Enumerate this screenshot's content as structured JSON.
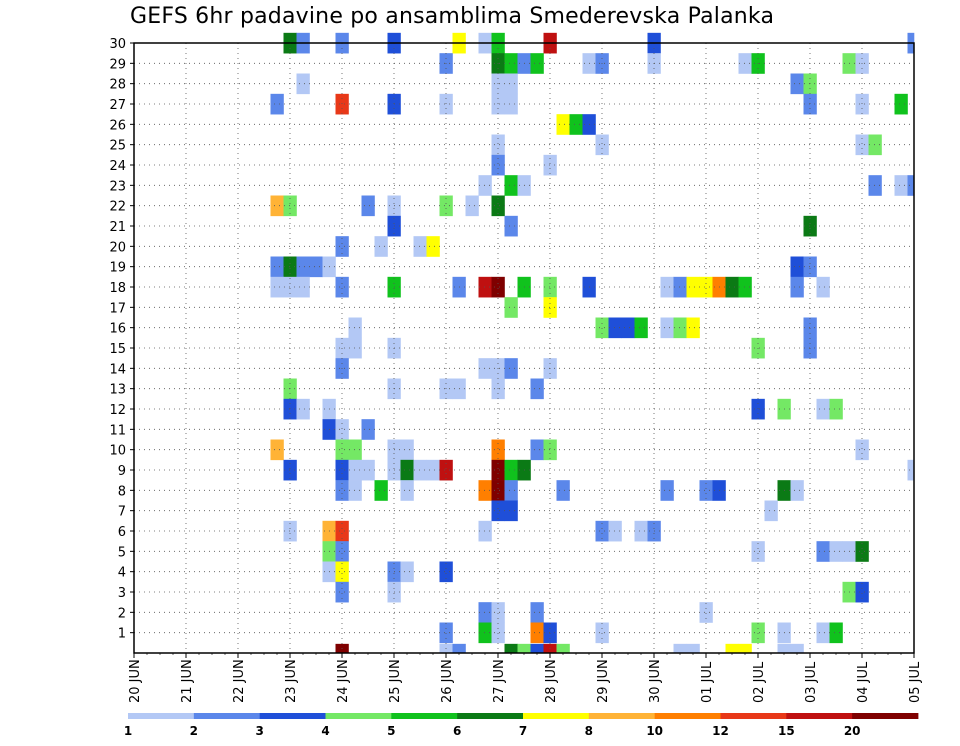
{
  "chart_data": {
    "type": "heatmap",
    "title": "GEFS 6hr padavine po ansamblima Smederevska Palanka",
    "xlabel": "",
    "ylabel": "",
    "x_tick_labels": [
      "20 JUN",
      "21 JUN",
      "22 JUN",
      "23 JUN",
      "24 JUN",
      "25 JUN",
      "26 JUN",
      "27 JUN",
      "28 JUN",
      "29 JUN",
      "30 JUN",
      "01 JUL",
      "02 JUL",
      "03 JUL",
      "04 JUL",
      "05 JUL"
    ],
    "y_tick_labels": [
      "1",
      "2",
      "3",
      "4",
      "5",
      "6",
      "7",
      "8",
      "9",
      "10",
      "11",
      "12",
      "13",
      "14",
      "15",
      "16",
      "17",
      "18",
      "19",
      "20",
      "21",
      "22",
      "23",
      "24",
      "25",
      "26",
      "27",
      "28",
      "29",
      "30"
    ],
    "x_range": [
      "20 JUN 00",
      "05 JUL 00"
    ],
    "time_step_hours": 6,
    "y_range": [
      0,
      30
    ],
    "grid": true,
    "colorbar": {
      "labels": [
        "1",
        "2",
        "3",
        "4",
        "5",
        "6",
        "7",
        "8",
        "10",
        "12",
        "15",
        "20"
      ],
      "colors": [
        "#b3c8f5",
        "#5b87ea",
        "#1f4fd8",
        "#74e865",
        "#10c21d",
        "#0b7a15",
        "#ffff00",
        "#ffb336",
        "#ff7f00",
        "#e83818",
        "#bf1010",
        "#7f0000"
      ]
    },
    "cells": [
      {
        "member": 30,
        "t": "23 JUN 00",
        "level": 6
      },
      {
        "member": 30,
        "t": "23 JUN 06",
        "level": 2
      },
      {
        "member": 30,
        "t": "24 JUN 00",
        "level": 2
      },
      {
        "member": 30,
        "t": "25 JUN 00",
        "level": 3
      },
      {
        "member": 30,
        "t": "26 JUN 06",
        "level": 7
      },
      {
        "member": 30,
        "t": "26 JUN 18",
        "level": 1
      },
      {
        "member": 30,
        "t": "27 JUN 00",
        "level": 5
      },
      {
        "member": 30,
        "t": "28 JUN 00",
        "level": 11
      },
      {
        "member": 30,
        "t": "30 JUN 00",
        "level": 3
      },
      {
        "member": 30,
        "t": "05 JUL 00",
        "level": 2
      },
      {
        "member": 29,
        "t": "26 JUN 00",
        "level": 2
      },
      {
        "member": 29,
        "t": "27 JUN 00",
        "level": 6
      },
      {
        "member": 29,
        "t": "27 JUN 06",
        "level": 5
      },
      {
        "member": 29,
        "t": "27 JUN 12",
        "level": 2
      },
      {
        "member": 29,
        "t": "27 JUN 18",
        "level": 5
      },
      {
        "member": 29,
        "t": "28 JUN 18",
        "level": 1
      },
      {
        "member": 29,
        "t": "29 JUN 00",
        "level": 2
      },
      {
        "member": 29,
        "t": "30 JUN 00",
        "level": 1
      },
      {
        "member": 29,
        "t": "01 JUL 18",
        "level": 1
      },
      {
        "member": 29,
        "t": "02 JUL 00",
        "level": 5
      },
      {
        "member": 29,
        "t": "03 JUL 18",
        "level": 4
      },
      {
        "member": 29,
        "t": "04 JUL 00",
        "level": 1
      },
      {
        "member": 28,
        "t": "23 JUN 06",
        "level": 1
      },
      {
        "member": 28,
        "t": "27 JUN 00",
        "level": 1
      },
      {
        "member": 28,
        "t": "27 JUN 06",
        "level": 1
      },
      {
        "member": 28,
        "t": "02 JUL 18",
        "level": 2
      },
      {
        "member": 28,
        "t": "03 JUL 00",
        "level": 4
      },
      {
        "member": 27,
        "t": "22 JUN 18",
        "level": 2
      },
      {
        "member": 27,
        "t": "24 JUN 00",
        "level": 10
      },
      {
        "member": 27,
        "t": "25 JUN 00",
        "level": 3
      },
      {
        "member": 27,
        "t": "26 JUN 00",
        "level": 1
      },
      {
        "member": 27,
        "t": "27 JUN 00",
        "level": 1
      },
      {
        "member": 27,
        "t": "27 JUN 06",
        "level": 1
      },
      {
        "member": 27,
        "t": "03 JUL 00",
        "level": 2
      },
      {
        "member": 27,
        "t": "04 JUL 00",
        "level": 1
      },
      {
        "member": 27,
        "t": "04 JUL 18",
        "level": 5
      },
      {
        "member": 26,
        "t": "28 JUN 06",
        "level": 7
      },
      {
        "member": 26,
        "t": "28 JUN 12",
        "level": 5
      },
      {
        "member": 26,
        "t": "28 JUN 18",
        "level": 3
      },
      {
        "member": 25,
        "t": "27 JUN 00",
        "level": 1
      },
      {
        "member": 25,
        "t": "29 JUN 00",
        "level": 1
      },
      {
        "member": 25,
        "t": "04 JUL 00",
        "level": 1
      },
      {
        "member": 25,
        "t": "04 JUL 06",
        "level": 4
      },
      {
        "member": 24,
        "t": "27 JUN 00",
        "level": 2
      },
      {
        "member": 24,
        "t": "28 JUN 00",
        "level": 1
      },
      {
        "member": 23,
        "t": "26 JUN 18",
        "level": 1
      },
      {
        "member": 23,
        "t": "27 JUN 06",
        "level": 5
      },
      {
        "member": 23,
        "t": "27 JUN 12",
        "level": 1
      },
      {
        "member": 23,
        "t": "04 JUL 06",
        "level": 2
      },
      {
        "member": 23,
        "t": "04 JUL 18",
        "level": 1
      },
      {
        "member": 23,
        "t": "05 JUL 00",
        "level": 2
      },
      {
        "member": 22,
        "t": "22 JUN 18",
        "level": 8
      },
      {
        "member": 22,
        "t": "23 JUN 00",
        "level": 4
      },
      {
        "member": 22,
        "t": "24 JUN 12",
        "level": 2
      },
      {
        "member": 22,
        "t": "25 JUN 00",
        "level": 1
      },
      {
        "member": 22,
        "t": "26 JUN 00",
        "level": 4
      },
      {
        "member": 22,
        "t": "26 JUN 12",
        "level": 1
      },
      {
        "member": 22,
        "t": "27 JUN 00",
        "level": 6
      },
      {
        "member": 21,
        "t": "25 JUN 00",
        "level": 3
      },
      {
        "member": 21,
        "t": "27 JUN 06",
        "level": 2
      },
      {
        "member": 21,
        "t": "03 JUL 00",
        "level": 6
      },
      {
        "member": 20,
        "t": "24 JUN 00",
        "level": 2
      },
      {
        "member": 20,
        "t": "24 JUN 18",
        "level": 1
      },
      {
        "member": 20,
        "t": "25 JUN 12",
        "level": 1
      },
      {
        "member": 20,
        "t": "25 JUN 18",
        "level": 7
      },
      {
        "member": 19,
        "t": "22 JUN 18",
        "level": 2
      },
      {
        "member": 19,
        "t": "23 JUN 00",
        "level": 6
      },
      {
        "member": 19,
        "t": "23 JUN 06",
        "level": 2
      },
      {
        "member": 19,
        "t": "23 JUN 12",
        "level": 2
      },
      {
        "member": 19,
        "t": "23 JUN 18",
        "level": 1
      },
      {
        "member": 19,
        "t": "02 JUL 18",
        "level": 3
      },
      {
        "member": 19,
        "t": "03 JUL 00",
        "level": 2
      },
      {
        "member": 18,
        "t": "22 JUN 18",
        "level": 1
      },
      {
        "member": 18,
        "t": "23 JUN 00",
        "level": 1
      },
      {
        "member": 18,
        "t": "23 JUN 06",
        "level": 1
      },
      {
        "member": 18,
        "t": "24 JUN 00",
        "level": 2
      },
      {
        "member": 18,
        "t": "25 JUN 00",
        "level": 5
      },
      {
        "member": 18,
        "t": "26 JUN 06",
        "level": 2
      },
      {
        "member": 18,
        "t": "26 JUN 18",
        "level": 11
      },
      {
        "member": 18,
        "t": "27 JUN 00",
        "level": 12
      },
      {
        "member": 18,
        "t": "27 JUN 12",
        "level": 5
      },
      {
        "member": 18,
        "t": "28 JUN 00",
        "level": 4
      },
      {
        "member": 18,
        "t": "28 JUN 18",
        "level": 3
      },
      {
        "member": 18,
        "t": "30 JUN 06",
        "level": 1
      },
      {
        "member": 18,
        "t": "30 JUN 12",
        "level": 2
      },
      {
        "member": 18,
        "t": "30 JUN 18",
        "level": 7
      },
      {
        "member": 18,
        "t": "01 JUL 00",
        "level": 7
      },
      {
        "member": 18,
        "t": "01 JUL 06",
        "level": 9
      },
      {
        "member": 18,
        "t": "01 JUL 12",
        "level": 6
      },
      {
        "member": 18,
        "t": "01 JUL 18",
        "level": 5
      },
      {
        "member": 18,
        "t": "02 JUL 18",
        "level": 2
      },
      {
        "member": 18,
        "t": "03 JUL 06",
        "level": 1
      },
      {
        "member": 17,
        "t": "27 JUN 06",
        "level": 4
      },
      {
        "member": 17,
        "t": "28 JUN 00",
        "level": 7
      },
      {
        "member": 16,
        "t": "24 JUN 06",
        "level": 1
      },
      {
        "member": 16,
        "t": "29 JUN 00",
        "level": 4
      },
      {
        "member": 16,
        "t": "29 JUN 06",
        "level": 3
      },
      {
        "member": 16,
        "t": "29 JUN 12",
        "level": 3
      },
      {
        "member": 16,
        "t": "29 JUN 18",
        "level": 5
      },
      {
        "member": 16,
        "t": "30 JUN 06",
        "level": 1
      },
      {
        "member": 16,
        "t": "30 JUN 12",
        "level": 4
      },
      {
        "member": 16,
        "t": "30 JUN 18",
        "level": 7
      },
      {
        "member": 16,
        "t": "03 JUL 00",
        "level": 2
      },
      {
        "member": 15,
        "t": "24 JUN 00",
        "level": 1
      },
      {
        "member": 15,
        "t": "24 JUN 06",
        "level": 1
      },
      {
        "member": 15,
        "t": "25 JUN 00",
        "level": 1
      },
      {
        "member": 15,
        "t": "02 JUL 00",
        "level": 4
      },
      {
        "member": 15,
        "t": "03 JUL 00",
        "level": 2
      },
      {
        "member": 14,
        "t": "24 JUN 00",
        "level": 2
      },
      {
        "member": 14,
        "t": "26 JUN 18",
        "level": 1
      },
      {
        "member": 14,
        "t": "27 JUN 00",
        "level": 1
      },
      {
        "member": 14,
        "t": "27 JUN 06",
        "level": 2
      },
      {
        "member": 14,
        "t": "28 JUN 00",
        "level": 1
      },
      {
        "member": 13,
        "t": "23 JUN 00",
        "level": 4
      },
      {
        "member": 13,
        "t": "25 JUN 00",
        "level": 1
      },
      {
        "member": 13,
        "t": "26 JUN 00",
        "level": 1
      },
      {
        "member": 13,
        "t": "26 JUN 06",
        "level": 1
      },
      {
        "member": 13,
        "t": "27 JUN 00",
        "level": 1
      },
      {
        "member": 13,
        "t": "27 JUN 18",
        "level": 2
      },
      {
        "member": 12,
        "t": "23 JUN 00",
        "level": 3
      },
      {
        "member": 12,
        "t": "23 JUN 06",
        "level": 1
      },
      {
        "member": 12,
        "t": "23 JUN 18",
        "level": 1
      },
      {
        "member": 12,
        "t": "02 JUL 00",
        "level": 3
      },
      {
        "member": 12,
        "t": "02 JUL 12",
        "level": 4
      },
      {
        "member": 12,
        "t": "03 JUL 06",
        "level": 1
      },
      {
        "member": 12,
        "t": "03 JUL 12",
        "level": 4
      },
      {
        "member": 11,
        "t": "23 JUN 18",
        "level": 3
      },
      {
        "member": 11,
        "t": "24 JUN 00",
        "level": 1
      },
      {
        "member": 11,
        "t": "24 JUN 12",
        "level": 2
      },
      {
        "member": 10,
        "t": "22 JUN 18",
        "level": 8
      },
      {
        "member": 10,
        "t": "24 JUN 00",
        "level": 4
      },
      {
        "member": 10,
        "t": "24 JUN 06",
        "level": 4
      },
      {
        "member": 10,
        "t": "25 JUN 00",
        "level": 1
      },
      {
        "member": 10,
        "t": "25 JUN 06",
        "level": 1
      },
      {
        "member": 10,
        "t": "27 JUN 00",
        "level": 9
      },
      {
        "member": 10,
        "t": "27 JUN 18",
        "level": 2
      },
      {
        "member": 10,
        "t": "28 JUN 00",
        "level": 4
      },
      {
        "member": 10,
        "t": "04 JUL 00",
        "level": 1
      },
      {
        "member": 9,
        "t": "23 JUN 00",
        "level": 3
      },
      {
        "member": 9,
        "t": "24 JUN 00",
        "level": 3
      },
      {
        "member": 9,
        "t": "24 JUN 06",
        "level": 1
      },
      {
        "member": 9,
        "t": "24 JUN 12",
        "level": 1
      },
      {
        "member": 9,
        "t": "25 JUN 00",
        "level": 1
      },
      {
        "member": 9,
        "t": "25 JUN 06",
        "level": 6
      },
      {
        "member": 9,
        "t": "25 JUN 12",
        "level": 1
      },
      {
        "member": 9,
        "t": "25 JUN 18",
        "level": 1
      },
      {
        "member": 9,
        "t": "26 JUN 00",
        "level": 11
      },
      {
        "member": 9,
        "t": "27 JUN 00",
        "level": 12
      },
      {
        "member": 9,
        "t": "27 JUN 06",
        "level": 5
      },
      {
        "member": 9,
        "t": "27 JUN 12",
        "level": 6
      },
      {
        "member": 9,
        "t": "05 JUL 00",
        "level": 1
      },
      {
        "member": 8,
        "t": "24 JUN 00",
        "level": 2
      },
      {
        "member": 8,
        "t": "24 JUN 06",
        "level": 1
      },
      {
        "member": 8,
        "t": "24 JUN 18",
        "level": 5
      },
      {
        "member": 8,
        "t": "25 JUN 06",
        "level": 1
      },
      {
        "member": 8,
        "t": "26 JUN 18",
        "level": 9
      },
      {
        "member": 8,
        "t": "27 JUN 00",
        "level": 12
      },
      {
        "member": 8,
        "t": "27 JUN 06",
        "level": 2
      },
      {
        "member": 8,
        "t": "28 JUN 06",
        "level": 2
      },
      {
        "member": 8,
        "t": "30 JUN 06",
        "level": 2
      },
      {
        "member": 8,
        "t": "01 JUL 00",
        "level": 2
      },
      {
        "member": 8,
        "t": "01 JUL 06",
        "level": 3
      },
      {
        "member": 8,
        "t": "02 JUL 12",
        "level": 6
      },
      {
        "member": 8,
        "t": "02 JUL 18",
        "level": 1
      },
      {
        "member": 7,
        "t": "27 JUN 00",
        "level": 3
      },
      {
        "member": 7,
        "t": "27 JUN 06",
        "level": 3
      },
      {
        "member": 7,
        "t": "02 JUL 06",
        "level": 1
      },
      {
        "member": 6,
        "t": "23 JUN 00",
        "level": 1
      },
      {
        "member": 6,
        "t": "23 JUN 18",
        "level": 8
      },
      {
        "member": 6,
        "t": "24 JUN 00",
        "level": 10
      },
      {
        "member": 6,
        "t": "26 JUN 18",
        "level": 1
      },
      {
        "member": 6,
        "t": "29 JUN 00",
        "level": 2
      },
      {
        "member": 6,
        "t": "29 JUN 06",
        "level": 1
      },
      {
        "member": 6,
        "t": "29 JUN 18",
        "level": 1
      },
      {
        "member": 6,
        "t": "30 JUN 00",
        "level": 2
      },
      {
        "member": 5,
        "t": "23 JUN 18",
        "level": 4
      },
      {
        "member": 5,
        "t": "24 JUN 00",
        "level": 2
      },
      {
        "member": 5,
        "t": "02 JUL 00",
        "level": 1
      },
      {
        "member": 5,
        "t": "03 JUL 06",
        "level": 2
      },
      {
        "member": 5,
        "t": "03 JUL 12",
        "level": 1
      },
      {
        "member": 5,
        "t": "03 JUL 18",
        "level": 1
      },
      {
        "member": 5,
        "t": "04 JUL 00",
        "level": 6
      },
      {
        "member": 4,
        "t": "23 JUN 18",
        "level": 1
      },
      {
        "member": 4,
        "t": "24 JUN 00",
        "level": 7
      },
      {
        "member": 4,
        "t": "25 JUN 00",
        "level": 2
      },
      {
        "member": 4,
        "t": "25 JUN 06",
        "level": 1
      },
      {
        "member": 4,
        "t": "26 JUN 00",
        "level": 3
      },
      {
        "member": 3,
        "t": "24 JUN 00",
        "level": 2
      },
      {
        "member": 3,
        "t": "25 JUN 00",
        "level": 1
      },
      {
        "member": 3,
        "t": "03 JUL 18",
        "level": 4
      },
      {
        "member": 3,
        "t": "04 JUL 00",
        "level": 3
      },
      {
        "member": 2,
        "t": "26 JUN 18",
        "level": 2
      },
      {
        "member": 2,
        "t": "27 JUN 00",
        "level": 1
      },
      {
        "member": 2,
        "t": "27 JUN 18",
        "level": 2
      },
      {
        "member": 2,
        "t": "01 JUL 00",
        "level": 1
      },
      {
        "member": 1,
        "t": "26 JUN 00",
        "level": 2
      },
      {
        "member": 1,
        "t": "26 JUN 18",
        "level": 5
      },
      {
        "member": 1,
        "t": "27 JUN 00",
        "level": 1
      },
      {
        "member": 1,
        "t": "27 JUN 18",
        "level": 9
      },
      {
        "member": 1,
        "t": "28 JUN 00",
        "level": 3
      },
      {
        "member": 1,
        "t": "29 JUN 00",
        "level": 1
      },
      {
        "member": 1,
        "t": "02 JUL 00",
        "level": 4
      },
      {
        "member": 1,
        "t": "02 JUL 12",
        "level": 1
      },
      {
        "member": 1,
        "t": "03 JUL 06",
        "level": 1
      },
      {
        "member": 1,
        "t": "03 JUL 12",
        "level": 5
      },
      {
        "member": 0,
        "t": "24 JUN 00",
        "level": 12
      },
      {
        "member": 0,
        "t": "26 JUN 00",
        "level": 1
      },
      {
        "member": 0,
        "t": "26 JUN 06",
        "level": 2
      },
      {
        "member": 0,
        "t": "27 JUN 06",
        "level": 6
      },
      {
        "member": 0,
        "t": "27 JUN 12",
        "level": 4
      },
      {
        "member": 0,
        "t": "27 JUN 18",
        "level": 3
      },
      {
        "member": 0,
        "t": "28 JUN 00",
        "level": 11
      },
      {
        "member": 0,
        "t": "28 JUN 06",
        "level": 4
      },
      {
        "member": 0,
        "t": "30 JUN 12",
        "level": 1
      },
      {
        "member": 0,
        "t": "30 JUN 18",
        "level": 1
      },
      {
        "member": 0,
        "t": "01 JUL 12",
        "level": 7
      },
      {
        "member": 0,
        "t": "01 JUL 18",
        "level": 7
      },
      {
        "member": 0,
        "t": "02 JUL 12",
        "level": 1
      },
      {
        "member": 0,
        "t": "02 JUL 18",
        "level": 1
      }
    ]
  }
}
